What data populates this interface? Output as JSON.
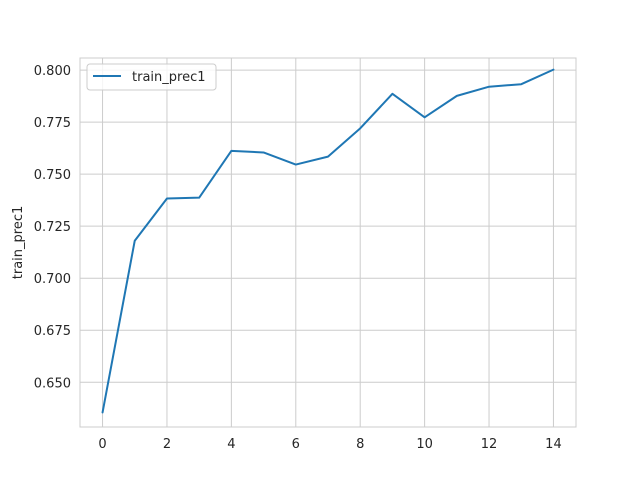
{
  "chart_data": {
    "type": "line",
    "title": "",
    "xlabel": "",
    "ylabel": "train_prec1",
    "xlim": [
      -0.7,
      14.7
    ],
    "ylim": [
      0.6285,
      0.8058
    ],
    "grid": true,
    "legend_position": "top-left",
    "x_ticks": [
      0,
      2,
      4,
      6,
      8,
      10,
      12,
      14
    ],
    "x_tick_labels": [
      "0",
      "2",
      "4",
      "6",
      "8",
      "10",
      "12",
      "14"
    ],
    "y_ticks": [
      0.65,
      0.675,
      0.7,
      0.725,
      0.75,
      0.775,
      0.8
    ],
    "y_tick_labels": [
      "0.650",
      "0.675",
      "0.700",
      "0.725",
      "0.750",
      "0.775",
      "0.800"
    ],
    "series": [
      {
        "name": "train_prec1",
        "color": "#1f77b4",
        "x": [
          0,
          1,
          2,
          3,
          4,
          5,
          6,
          7,
          8,
          9,
          10,
          11,
          12,
          13,
          14
        ],
        "y": [
          0.6355,
          0.718,
          0.7383,
          0.7387,
          0.7612,
          0.7604,
          0.7546,
          0.7584,
          0.772,
          0.7886,
          0.7773,
          0.7876,
          0.792,
          0.7932,
          0.8002
        ]
      }
    ]
  }
}
